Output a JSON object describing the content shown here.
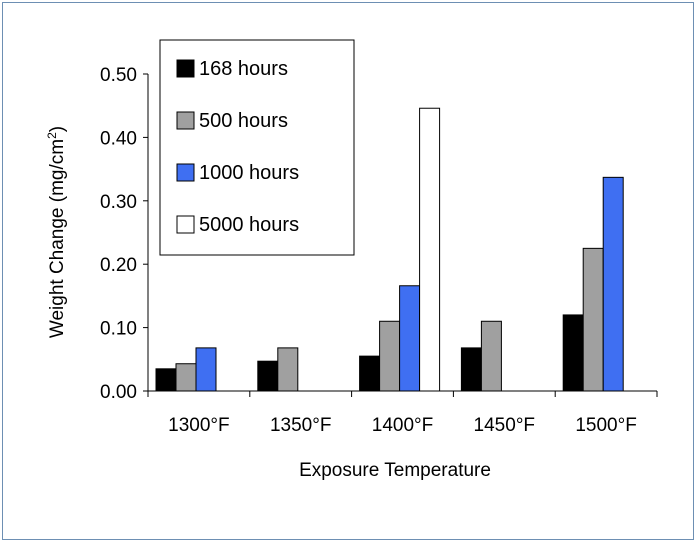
{
  "chart_data": {
    "type": "bar",
    "categories": [
      "1300°F",
      "1350°F",
      "1400°F",
      "1450°F",
      "1500°F"
    ],
    "series": [
      {
        "name": "168 hours",
        "color": "#000000",
        "values": [
          0.035,
          0.047,
          0.055,
          0.068,
          0.12
        ]
      },
      {
        "name": "500 hours",
        "color": "#a0a0a0",
        "values": [
          0.043,
          0.068,
          0.11,
          0.11,
          0.225
        ]
      },
      {
        "name": "1000 hours",
        "color": "#3f6ff2",
        "values": [
          0.068,
          null,
          0.166,
          null,
          0.337
        ]
      },
      {
        "name": "5000 hours",
        "color": "#ffffff",
        "values": [
          null,
          null,
          0.446,
          null,
          null
        ]
      }
    ],
    "xlabel": "Exposure Temperature",
    "ylabel_main": "Weight Change (mg/cm",
    "ylabel_sup": "2",
    "ylabel_end": ")",
    "ylim": [
      0,
      0.5
    ],
    "yticks": [
      "0.00",
      "0.10",
      "0.20",
      "0.30",
      "0.40",
      "0.50"
    ],
    "legend_position": "top-left",
    "grid": false
  }
}
